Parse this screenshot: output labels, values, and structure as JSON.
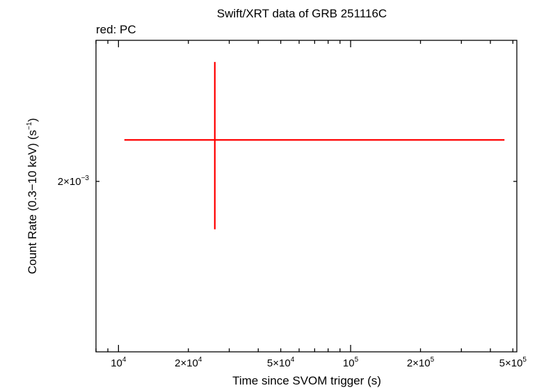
{
  "chart_data": {
    "type": "scatter",
    "title": "Swift/XRT data of GRB 251116C",
    "subtitle": "red: PC",
    "xlabel": "Time since SVOM trigger (s)",
    "ylabel": {
      "main": "Count Rate (0.3−10 keV) (s",
      "sup": "−1",
      "end": ")"
    },
    "x_scale": "log",
    "y_scale": "log",
    "xlim": [
      8000,
      520000
    ],
    "ylim": [
      0.00143,
      0.00264
    ],
    "x_ticks": [
      {
        "value": 10000,
        "base": "10",
        "exp": "4"
      },
      {
        "value": 20000,
        "base": "2×10",
        "exp": "4"
      },
      {
        "value": 50000,
        "base": "5×10",
        "exp": "4"
      },
      {
        "value": 100000,
        "base": "10",
        "exp": "5"
      },
      {
        "value": 200000,
        "base": "2×10",
        "exp": "5"
      },
      {
        "value": 500000,
        "base": "5×10",
        "exp": "5"
      }
    ],
    "y_ticks": [
      {
        "value": 0.002,
        "base": "2×10",
        "exp": "−3"
      }
    ],
    "series": [
      {
        "color": "#ff0000",
        "points": [
          {
            "x": 26000,
            "x_lo": 10600,
            "x_hi": 460000,
            "y": 0.00217,
            "y_lo": 0.00182,
            "y_hi": 0.00253
          }
        ]
      }
    ]
  }
}
